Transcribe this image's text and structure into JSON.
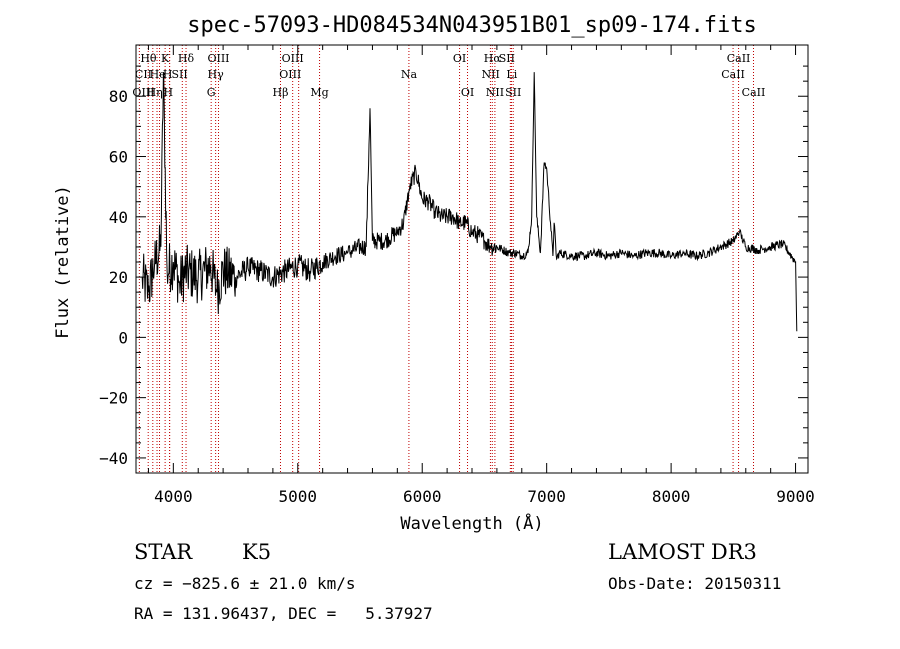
{
  "chart_data": {
    "type": "line",
    "title": "spec-57093-HD084534N043951B01_sp09-174.fits",
    "xlabel": "Wavelength (Å)",
    "ylabel": "Flux (relative)",
    "xlim": [
      3700,
      9100
    ],
    "ylim": [
      -45,
      97
    ],
    "x_ticks": [
      4000,
      5000,
      6000,
      7000,
      8000,
      9000
    ],
    "y_ticks": [
      -40,
      -20,
      0,
      20,
      40,
      60,
      80
    ],
    "x_tick_labels": [
      "4000",
      "5000",
      "6000",
      "7000",
      "8000",
      "9000"
    ],
    "y_tick_labels": [
      "−40",
      "−20",
      "0",
      "20",
      "40",
      "60",
      "80"
    ],
    "series": [
      {
        "name": "spectrum",
        "x": [
          3750,
          3800,
          3850,
          3900,
          3920,
          3950,
          4000,
          4050,
          4100,
          4200,
          4300,
          4350,
          4400,
          4500,
          4600,
          4700,
          4800,
          4900,
          5000,
          5100,
          5200,
          5300,
          5400,
          5500,
          5550,
          5580,
          5600,
          5700,
          5800,
          5850,
          5900,
          5950,
          6000,
          6050,
          6100,
          6150,
          6200,
          6250,
          6300,
          6350,
          6400,
          6450,
          6500,
          6550,
          6600,
          6650,
          6700,
          6750,
          6800,
          6850,
          6880,
          6900,
          6920,
          6950,
          6980,
          7000,
          7050,
          7060,
          7080,
          7100,
          7200,
          7300,
          7400,
          7500,
          7600,
          7700,
          7800,
          7900,
          8000,
          8100,
          8200,
          8300,
          8400,
          8500,
          8550,
          8600,
          8700,
          8800,
          8900,
          8950,
          9000,
          9010
        ],
        "y": [
          20,
          15,
          25,
          30,
          88,
          22,
          25,
          18,
          22,
          20,
          24,
          15,
          22,
          20,
          23,
          22,
          20,
          22,
          24,
          22,
          25,
          27,
          28,
          30,
          30,
          76,
          32,
          32,
          35,
          38,
          50,
          55,
          46,
          45,
          42,
          40,
          40,
          40,
          38,
          38,
          35,
          34,
          32,
          30,
          30,
          29,
          28,
          28,
          27,
          28,
          40,
          88,
          40,
          28,
          58,
          56,
          27,
          38,
          26,
          28,
          27,
          27,
          28,
          27,
          28,
          27,
          28,
          28,
          27,
          28,
          27,
          28,
          30,
          32,
          35,
          30,
          29,
          30,
          31,
          28,
          25,
          2
        ]
      }
    ],
    "lines": [
      {
        "label": "Hθ",
        "wl": 3798,
        "pos": "top",
        "tx": 3800
      },
      {
        "label": "K",
        "wl": 3934,
        "pos": "top",
        "tx": 3934
      },
      {
        "label": "Hδ",
        "wl": 4102,
        "pos": "top",
        "tx": 4102
      },
      {
        "label": "OIII",
        "wl": 4363,
        "pos": "top",
        "tx": 4363
      },
      {
        "label": "OIII",
        "wl": 4959,
        "pos": "top",
        "tx": 4959
      },
      {
        "label": "OI",
        "wl": 6300,
        "pos": "top",
        "tx": 6300
      },
      {
        "label": "Hα",
        "wl": 6563,
        "pos": "top",
        "tx": 6563
      },
      {
        "label": "SII",
        "wl": 6717,
        "pos": "top",
        "tx": 6680
      },
      {
        "label": "CaII",
        "wl": 8542,
        "pos": "top",
        "tx": 8542
      },
      {
        "label": "CII",
        "wl": 3727,
        "pos": "mid",
        "tx": 3760
      },
      {
        "label": "He",
        "wl": 3889,
        "pos": "mid",
        "tx": 3874
      },
      {
        "label": "H",
        "wl": 3970,
        "pos": "mid",
        "tx": 3955
      },
      {
        "label": "SII",
        "wl": 4072,
        "pos": "mid",
        "tx": 4050
      },
      {
        "label": "Hγ",
        "wl": 4340,
        "pos": "mid",
        "tx": 4340
      },
      {
        "label": "OIII",
        "wl": 5007,
        "pos": "mid",
        "tx": 4940
      },
      {
        "label": "Na",
        "wl": 5893,
        "pos": "mid",
        "tx": 5893
      },
      {
        "label": "NII",
        "wl": 6548,
        "pos": "mid",
        "tx": 6550
      },
      {
        "label": "Li",
        "wl": 6708,
        "pos": "mid",
        "tx": 6720
      },
      {
        "label": "CaII",
        "wl": 8498,
        "pos": "mid",
        "tx": 8498
      },
      {
        "label": "OIII",
        "wl": 3869,
        "pos": "low",
        "tx": 3760
      },
      {
        "label": "Hη",
        "wl": 3835,
        "pos": "low",
        "tx": 3850
      },
      {
        "label": "H",
        "wl": 3970,
        "pos": "low",
        "tx": 3960
      },
      {
        "label": "G",
        "wl": 4304,
        "pos": "low",
        "tx": 4304
      },
      {
        "label": "Hβ",
        "wl": 4861,
        "pos": "low",
        "tx": 4861
      },
      {
        "label": "Mg",
        "wl": 5175,
        "pos": "low",
        "tx": 5175
      },
      {
        "label": "OI",
        "wl": 6364,
        "pos": "low",
        "tx": 6364
      },
      {
        "label": "NII",
        "wl": 6584,
        "pos": "low",
        "tx": 6584
      },
      {
        "label": "SII",
        "wl": 6731,
        "pos": "low",
        "tx": 6731
      },
      {
        "label": "CaII",
        "wl": 8662,
        "pos": "low",
        "tx": 8662
      }
    ]
  },
  "info": {
    "object_class": "STAR",
    "subclass": "K5",
    "survey": "LAMOST DR3",
    "velocity": "cz = −825.6 ± 21.0 km/s",
    "obs_date": "Obs-Date: 20150311",
    "coords": "RA = 131.96437, DEC =   5.37927"
  }
}
